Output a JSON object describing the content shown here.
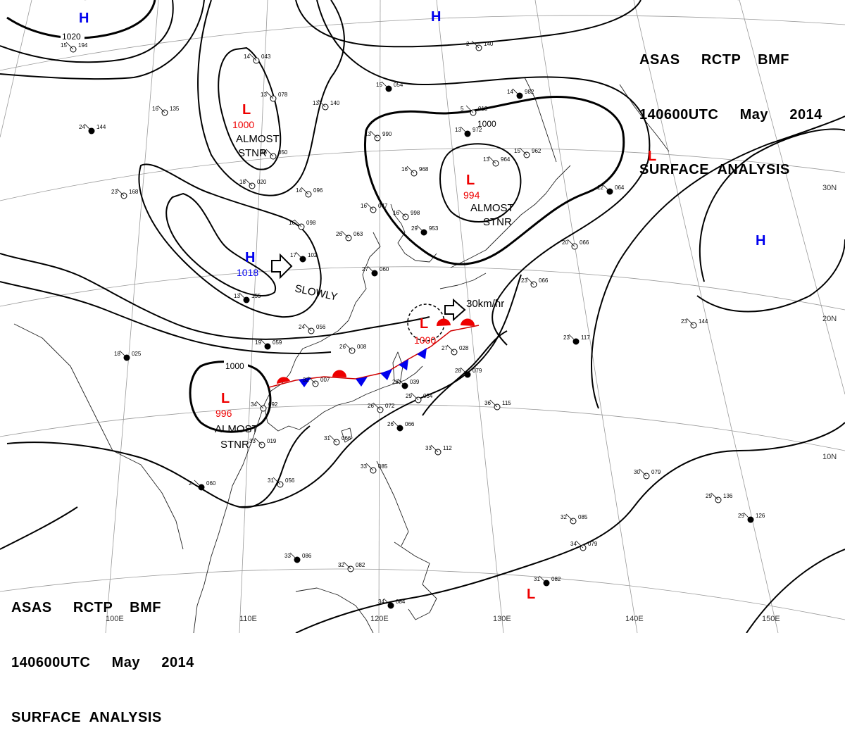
{
  "header": {
    "line1": "ASAS     RCTP    BMF",
    "line2": "140600UTC     May     2014",
    "line3": "SURFACE  ANALYSIS"
  },
  "grid": {
    "lon_labels": [
      "100E",
      "110E",
      "120E",
      "130E",
      "140E",
      "150E"
    ],
    "lat_labels": [
      "30N",
      "20N",
      "10N"
    ]
  },
  "isobars": {
    "labels": [
      "1020",
      "1000",
      "1000",
      "1000"
    ]
  },
  "pressure_centers": [
    {
      "type": "H",
      "value": "",
      "color": "#0000ee"
    },
    {
      "type": "H",
      "value": "",
      "color": "#0000ee"
    },
    {
      "type": "H",
      "value": "1018",
      "color": "#0000ee"
    },
    {
      "type": "H",
      "value": "",
      "color": "#0000ee"
    },
    {
      "type": "L",
      "value": "1000",
      "color": "#ee0000"
    },
    {
      "type": "L",
      "value": "994",
      "color": "#ee0000"
    },
    {
      "type": "L",
      "value": "996",
      "color": "#ee0000"
    },
    {
      "type": "L",
      "value": "1000",
      "color": "#ee0000"
    },
    {
      "type": "L",
      "value": "",
      "color": "#ee0000"
    },
    {
      "type": "L",
      "value": "",
      "color": "#ee0000"
    }
  ],
  "annotations": {
    "almost_stnr_1": [
      "ALMOST",
      "STNR"
    ],
    "almost_stnr_2": [
      "ALMOST",
      "STNR"
    ],
    "almost_stnr_3": [
      "ALMOST",
      "STNR"
    ],
    "slowly": "SLOWLY",
    "speed": "30km/hr"
  },
  "stations": [
    {
      "temp": "19",
      "pres": "059"
    },
    {
      "temp": "24",
      "pres": "056"
    },
    {
      "temp": "16",
      "pres": "098"
    },
    {
      "temp": "17",
      "pres": "102"
    },
    {
      "temp": "18",
      "pres": "020"
    },
    {
      "temp": "14",
      "pres": "096"
    },
    {
      "temp": "13",
      "pres": "155"
    },
    {
      "temp": "26",
      "pres": "008"
    },
    {
      "temp": "32",
      "pres": "007"
    },
    {
      "temp": "28",
      "pres": "039"
    },
    {
      "temp": "29",
      "pres": "054"
    },
    {
      "temp": "26",
      "pres": "072"
    },
    {
      "temp": "26",
      "pres": "066"
    },
    {
      "temp": "31",
      "pres": "066"
    },
    {
      "temp": "31",
      "pres": "056"
    },
    {
      "temp": "33",
      "pres": "086"
    },
    {
      "temp": "33",
      "pres": "085"
    },
    {
      "temp": "32",
      "pres": "082"
    },
    {
      "temp": "34",
      "pres": "084"
    },
    {
      "temp": "33",
      "pres": "112"
    },
    {
      "temp": "36",
      "pres": "115"
    },
    {
      "temp": "28",
      "pres": "079"
    },
    {
      "temp": "27",
      "pres": "028"
    },
    {
      "temp": "23",
      "pres": "144"
    },
    {
      "temp": "23",
      "pres": "117"
    },
    {
      "temp": "30",
      "pres": "079"
    },
    {
      "temp": "29",
      "pres": "136"
    },
    {
      "temp": "29",
      "pres": "126"
    },
    {
      "temp": "32",
      "pres": "085"
    },
    {
      "temp": "34",
      "pres": "079"
    },
    {
      "temp": "31",
      "pres": "082"
    },
    {
      "temp": "16",
      "pres": "047"
    },
    {
      "temp": "16",
      "pres": "998"
    },
    {
      "temp": "29",
      "pres": "953"
    },
    {
      "temp": "13",
      "pres": "990"
    },
    {
      "temp": "16",
      "pres": "968"
    },
    {
      "temp": "13",
      "pres": "972"
    },
    {
      "temp": "13",
      "pres": "964"
    },
    {
      "temp": "15",
      "pres": "962"
    },
    {
      "temp": "12",
      "pres": "064"
    },
    {
      "temp": "20",
      "pres": "066"
    },
    {
      "temp": "23",
      "pres": "066"
    },
    {
      "temp": "18",
      "pres": "025"
    },
    {
      "temp": "33",
      "pres": "019"
    },
    {
      "temp": "34",
      "pres": "092"
    },
    {
      "temp": "2",
      "pres": "060"
    },
    {
      "temp": "14",
      "pres": "043"
    },
    {
      "temp": "13",
      "pres": "140"
    },
    {
      "temp": "15",
      "pres": "054"
    },
    {
      "temp": "13",
      "pres": "078"
    },
    {
      "temp": "16",
      "pres": "135"
    },
    {
      "temp": "24",
      "pres": "144"
    },
    {
      "temp": "23",
      "pres": "168"
    },
    {
      "temp": "36",
      "pres": "050"
    },
    {
      "temp": "27",
      "pres": "060"
    },
    {
      "temp": "26",
      "pres": "063"
    },
    {
      "temp": "2",
      "pres": "140"
    },
    {
      "temp": "14",
      "pres": "982"
    },
    {
      "temp": "5",
      "pres": "013"
    },
    {
      "temp": "15",
      "pres": "194"
    }
  ]
}
